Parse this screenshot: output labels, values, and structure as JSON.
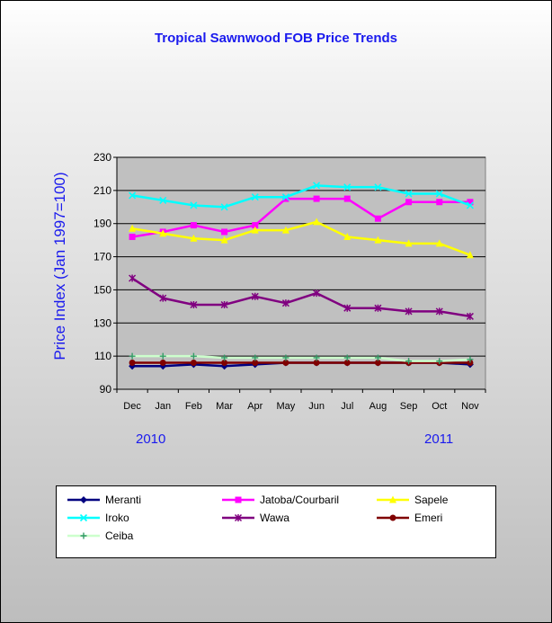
{
  "chart_data": {
    "type": "line",
    "title": "Tropical Sawnwood FOB Price Trends",
    "xlabel": "",
    "ylabel": "Price Index  (Jan 1997=100)",
    "categories": [
      "Dec",
      "Jan",
      "Feb",
      "Mar",
      "Apr",
      "May",
      "Jun",
      "Jul",
      "Aug",
      "Sep",
      "Oct",
      "Nov"
    ],
    "year_labels": [
      "2010",
      "2011"
    ],
    "ylim": [
      90,
      230
    ],
    "yticks": [
      90,
      110,
      130,
      150,
      170,
      190,
      210,
      230
    ],
    "grid": true,
    "legend_position": "bottom",
    "series": [
      {
        "name": "Meranti",
        "color": "#000080",
        "marker": "diamond",
        "values": [
          104,
          104,
          105,
          104,
          105,
          106,
          106,
          106,
          106,
          106,
          106,
          105
        ]
      },
      {
        "name": "Jatoba/Courbaril",
        "color": "#ff00ff",
        "marker": "square",
        "values": [
          182,
          185,
          189,
          185,
          189,
          205,
          205,
          205,
          193,
          203,
          203,
          203
        ]
      },
      {
        "name": "Sapele",
        "color": "#ffff00",
        "marker": "triangle",
        "values": [
          187,
          184,
          181,
          180,
          186,
          186,
          191,
          182,
          180,
          178,
          178,
          171
        ]
      },
      {
        "name": "Iroko",
        "color": "#00ffff",
        "marker": "x",
        "values": [
          207,
          204,
          201,
          200,
          206,
          206,
          213,
          212,
          212,
          208,
          208,
          201
        ]
      },
      {
        "name": "Wawa",
        "color": "#800080",
        "marker": "star",
        "values": [
          157,
          145,
          141,
          141,
          146,
          142,
          148,
          139,
          139,
          137,
          137,
          134
        ]
      },
      {
        "name": "Emeri",
        "color": "#800000",
        "marker": "circle",
        "values": [
          106,
          106,
          106,
          106,
          106,
          106,
          106,
          106,
          106,
          106,
          106,
          106
        ]
      },
      {
        "name": "Ceiba",
        "color": "#339966",
        "line_color": "#ccffcc",
        "marker": "plus",
        "values": [
          110,
          110,
          110,
          109,
          109,
          109,
          109,
          109,
          109,
          107,
          107,
          108
        ]
      }
    ]
  }
}
